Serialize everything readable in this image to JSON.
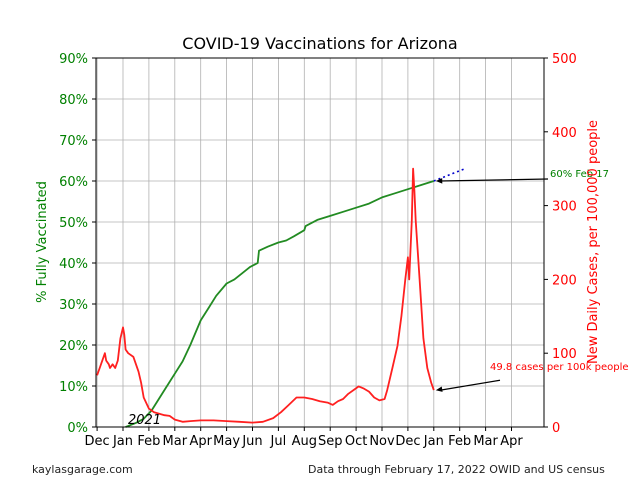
{
  "chart_data": {
    "type": "line",
    "title": "COVID-19 Vaccinations for Arizona",
    "left_axis": {
      "label": "% Fully Vaccinated",
      "ylim": [
        0,
        90
      ],
      "ticks": [
        "0%",
        "10%",
        "20%",
        "30%",
        "40%",
        "50%",
        "60%",
        "70%",
        "80%",
        "90%"
      ],
      "color": "#008000"
    },
    "right_axis": {
      "label": "New Daily Cases, per 100,000 people",
      "ylim": [
        0,
        500
      ],
      "ticks": [
        "0",
        "100",
        "200",
        "300",
        "400",
        "500"
      ],
      "color": "#ff0000"
    },
    "x_ticks": [
      "Dec",
      "Jan",
      "Feb",
      "Mar",
      "Apr",
      "May",
      "Jun",
      "Jul",
      "Aug",
      "Sep",
      "Oct",
      "Nov",
      "Dec",
      "Jan",
      "Feb",
      "Mar",
      "Apr"
    ],
    "year_label": "2021",
    "grid": true,
    "series": [
      {
        "role": "vaccinated",
        "axis": "left",
        "color": "#228B22",
        "points": [
          [
            1.1,
            0
          ],
          [
            1.5,
            1
          ],
          [
            1.8,
            2
          ],
          [
            2.1,
            4
          ],
          [
            2.3,
            6
          ],
          [
            2.6,
            9
          ],
          [
            3.0,
            13
          ],
          [
            3.3,
            16
          ],
          [
            3.6,
            20
          ],
          [
            4.0,
            26
          ],
          [
            4.3,
            29
          ],
          [
            4.6,
            32
          ],
          [
            5.0,
            35
          ],
          [
            5.3,
            36
          ],
          [
            5.6,
            37.5
          ],
          [
            5.9,
            39
          ],
          [
            6.2,
            40
          ],
          [
            6.25,
            43
          ],
          [
            6.6,
            44
          ],
          [
            7.0,
            45
          ],
          [
            7.3,
            45.5
          ],
          [
            7.6,
            46.5
          ],
          [
            8.0,
            48
          ],
          [
            8.05,
            49
          ],
          [
            8.5,
            50.5
          ],
          [
            9.0,
            51.5
          ],
          [
            9.5,
            52.5
          ],
          [
            10.0,
            53.5
          ],
          [
            10.5,
            54.5
          ],
          [
            11.0,
            56
          ],
          [
            11.5,
            57
          ],
          [
            12.0,
            58
          ],
          [
            12.5,
            59
          ],
          [
            13.0,
            60
          ]
        ]
      },
      {
        "role": "projection",
        "axis": "left",
        "color": "#0000cc",
        "style": "dotted",
        "points": [
          [
            13.0,
            60
          ],
          [
            14.2,
            63
          ]
        ]
      },
      {
        "role": "cases",
        "axis": "right",
        "color": "#ff2020",
        "points": [
          [
            0,
            70
          ],
          [
            0.1,
            80
          ],
          [
            0.2,
            90
          ],
          [
            0.3,
            100
          ],
          [
            0.35,
            90
          ],
          [
            0.45,
            85
          ],
          [
            0.5,
            80
          ],
          [
            0.6,
            85
          ],
          [
            0.7,
            80
          ],
          [
            0.8,
            90
          ],
          [
            0.9,
            120
          ],
          [
            1.0,
            135
          ],
          [
            1.05,
            125
          ],
          [
            1.1,
            105
          ],
          [
            1.2,
            100
          ],
          [
            1.4,
            95
          ],
          [
            1.6,
            75
          ],
          [
            1.7,
            60
          ],
          [
            1.8,
            40
          ],
          [
            2.0,
            25
          ],
          [
            2.2,
            20
          ],
          [
            2.4,
            18
          ],
          [
            2.6,
            16
          ],
          [
            2.8,
            15
          ],
          [
            3.0,
            10
          ],
          [
            3.3,
            7
          ],
          [
            3.6,
            8
          ],
          [
            4.0,
            9
          ],
          [
            4.5,
            9
          ],
          [
            5.0,
            8
          ],
          [
            5.5,
            7
          ],
          [
            6.0,
            6
          ],
          [
            6.4,
            7
          ],
          [
            6.8,
            12
          ],
          [
            7.1,
            20
          ],
          [
            7.4,
            30
          ],
          [
            7.7,
            40
          ],
          [
            8.0,
            40
          ],
          [
            8.3,
            38
          ],
          [
            8.6,
            35
          ],
          [
            8.9,
            33
          ],
          [
            9.1,
            30
          ],
          [
            9.3,
            35
          ],
          [
            9.5,
            38
          ],
          [
            9.7,
            45
          ],
          [
            9.9,
            50
          ],
          [
            10.1,
            55
          ],
          [
            10.3,
            52
          ],
          [
            10.5,
            48
          ],
          [
            10.7,
            40
          ],
          [
            10.9,
            36
          ],
          [
            11.1,
            38
          ],
          [
            11.2,
            50
          ],
          [
            11.4,
            80
          ],
          [
            11.6,
            110
          ],
          [
            11.75,
            150
          ],
          [
            11.9,
            200
          ],
          [
            12.0,
            230
          ],
          [
            12.05,
            200
          ],
          [
            12.15,
            280
          ],
          [
            12.2,
            350
          ],
          [
            12.25,
            320
          ],
          [
            12.3,
            280
          ],
          [
            12.45,
            200
          ],
          [
            12.6,
            120
          ],
          [
            12.75,
            80
          ],
          [
            12.9,
            60
          ],
          [
            13.0,
            50
          ]
        ]
      }
    ],
    "annotations": [
      {
        "text": "60% Feb 17",
        "color": "#008000",
        "target_x": 13.0,
        "target_y_left": 60
      },
      {
        "text": "49.8 cases per 100k people",
        "color": "#ff0000",
        "target_x": 13.0,
        "target_y_right": 49.8
      }
    ]
  },
  "footer": {
    "left": "kaylasgarage.com",
    "right": "Data through February 17, 2022 OWID and US census"
  }
}
